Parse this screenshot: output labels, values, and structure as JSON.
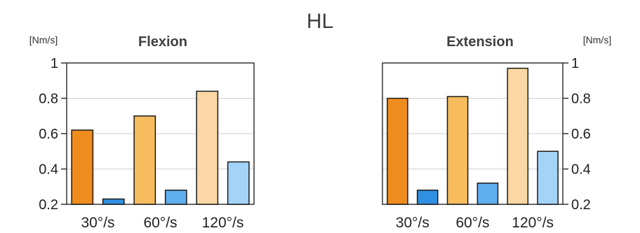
{
  "title": "HL",
  "chart_data": [
    {
      "type": "bar",
      "title": "Flexion",
      "ylabel": "[Nm/s]",
      "axis_side": "left",
      "ylim": [
        0.2,
        1
      ],
      "yticks": [
        "0.2",
        "0.4",
        "0.6",
        "0.8",
        "1"
      ],
      "categories": [
        "30°/s",
        "60°/s",
        "120°/s"
      ],
      "grid": true,
      "bars": [
        {
          "value": 0.62,
          "color": "#EE8C1E"
        },
        {
          "value": 0.23,
          "color": "#2F8FE0"
        },
        {
          "value": 0.7,
          "color": "#F6BC5E"
        },
        {
          "value": 0.28,
          "color": "#5FAEEE"
        },
        {
          "value": 0.84,
          "color": "#FAD7A4"
        },
        {
          "value": 0.44,
          "color": "#A4D3F8"
        }
      ]
    },
    {
      "type": "bar",
      "title": "Extension",
      "ylabel": "[Nm/s]",
      "axis_side": "right",
      "ylim": [
        0.2,
        1
      ],
      "yticks": [
        "0.2",
        "0.4",
        "0.6",
        "0.8",
        "1"
      ],
      "categories": [
        "30°/s",
        "60°/s",
        "120°/s"
      ],
      "grid": true,
      "bars": [
        {
          "value": 0.8,
          "color": "#EE8C1E"
        },
        {
          "value": 0.28,
          "color": "#2F8FE0"
        },
        {
          "value": 0.81,
          "color": "#F6BC5E"
        },
        {
          "value": 0.32,
          "color": "#5FAEEE"
        },
        {
          "value": 0.97,
          "color": "#FAD7A4"
        },
        {
          "value": 0.5,
          "color": "#A4D3F8"
        }
      ]
    }
  ]
}
